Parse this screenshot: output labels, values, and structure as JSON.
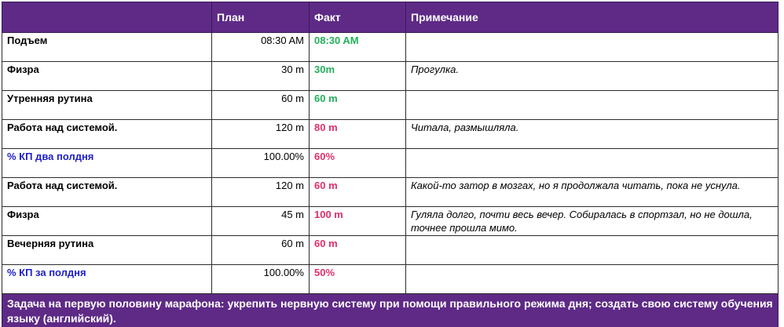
{
  "header": {
    "name": "",
    "plan": "План",
    "fact": "Факт",
    "note": "Примечание"
  },
  "colors": {
    "header_bg": "#5e2a86",
    "fact_green": "#22b05a",
    "fact_red": "#e0306a",
    "kp_label_blue": "#1f1fc8"
  },
  "rows": [
    {
      "name": "Подъем",
      "plan": "08:30 AM",
      "fact": "08:30 AM",
      "fact_status": "green",
      "note": "",
      "kind": "task"
    },
    {
      "name": "Физра",
      "plan": "30 m",
      "fact": "30m",
      "fact_status": "green",
      "note": "Прогулка.",
      "kind": "task"
    },
    {
      "name": "Утренняя  рутина",
      "plan": "60 m",
      "fact": "60 m",
      "fact_status": "green",
      "note": "",
      "kind": "task"
    },
    {
      "name": "Работа  над системой.",
      "plan": "120 m",
      "fact": "80 m",
      "fact_status": "red",
      "note": "Читала, размышляла.",
      "kind": "task"
    },
    {
      "name": "% КП два полдня",
      "plan": "100.00%",
      "fact": "60%",
      "fact_status": "red",
      "note": "",
      "kind": "kp"
    },
    {
      "name": "Работа  над системой.",
      "plan": "120 m",
      "fact": "60 m",
      "fact_status": "red",
      "note": "Какой-то затор в мозгах, но я продолжала читать, пока не уснула.",
      "kind": "task"
    },
    {
      "name": "Физра",
      "plan": "45 m",
      "fact": "100 m",
      "fact_status": "red",
      "note": "Гуляла долго, почти весь вечер. Собиралась в спортзал, но не дошла, точнее прошла мимо.",
      "kind": "task"
    },
    {
      "name": "Вечерняя рутина",
      "plan": "60 m",
      "fact": "60 m",
      "fact_status": "red",
      "note": "",
      "kind": "task"
    },
    {
      "name": "% КП за полдня",
      "plan": "100.00%",
      "fact": "50%",
      "fact_status": "red",
      "note": "",
      "kind": "kp"
    }
  ],
  "footer": {
    "goal": "Задача на первую половину марафона: укрепить  нервную систему при помощи правильного режима дня;  создать свою систему обучения языку (английский)."
  }
}
